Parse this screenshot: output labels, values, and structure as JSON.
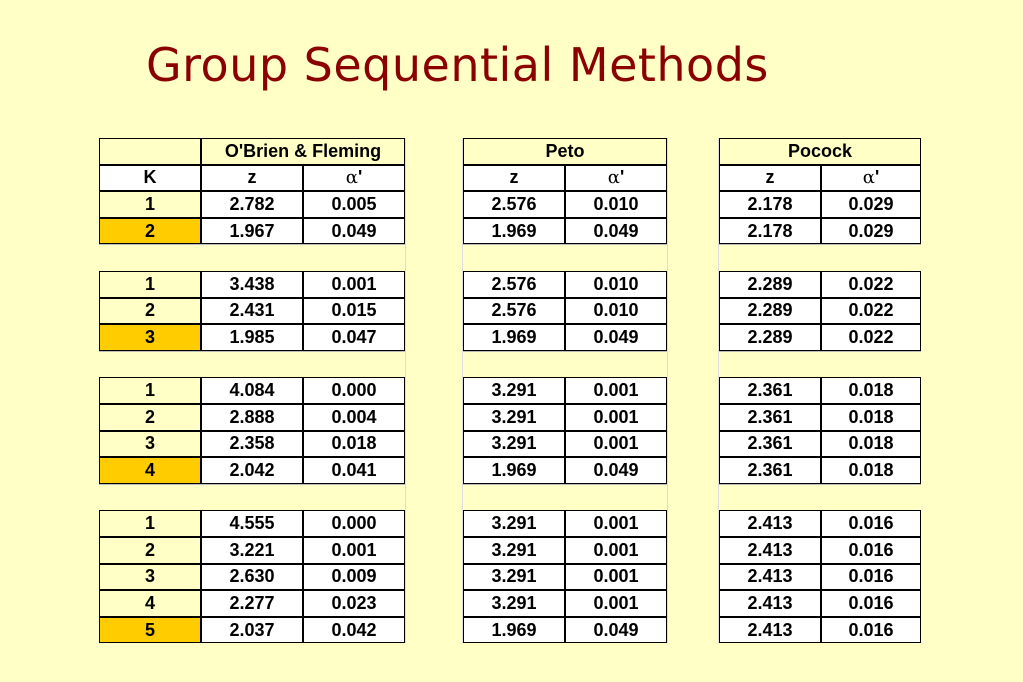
{
  "title": "Group Sequential Methods",
  "table": {
    "header_k": "K",
    "z_label": "z",
    "alpha_symbol": "α",
    "alpha_prime": "'",
    "methods": [
      "O'Brien & Fleming",
      "Peto",
      "Pocock"
    ],
    "groups": [
      {
        "rows": [
          {
            "k": "1",
            "obf_z": "2.782",
            "obf_a": "0.005",
            "peto_z": "2.576",
            "peto_a": "0.010",
            "poc_z": "2.178",
            "poc_a": "0.029"
          },
          {
            "k": "2",
            "obf_z": "1.967",
            "obf_a": "0.049",
            "peto_z": "1.969",
            "peto_a": "0.049",
            "poc_z": "2.178",
            "poc_a": "0.029"
          }
        ]
      },
      {
        "rows": [
          {
            "k": "1",
            "obf_z": "3.438",
            "obf_a": "0.001",
            "peto_z": "2.576",
            "peto_a": "0.010",
            "poc_z": "2.289",
            "poc_a": "0.022"
          },
          {
            "k": "2",
            "obf_z": "2.431",
            "obf_a": "0.015",
            "peto_z": "2.576",
            "peto_a": "0.010",
            "poc_z": "2.289",
            "poc_a": "0.022"
          },
          {
            "k": "3",
            "obf_z": "1.985",
            "obf_a": "0.047",
            "peto_z": "1.969",
            "peto_a": "0.049",
            "poc_z": "2.289",
            "poc_a": "0.022"
          }
        ]
      },
      {
        "rows": [
          {
            "k": "1",
            "obf_z": "4.084",
            "obf_a": "0.000",
            "peto_z": "3.291",
            "peto_a": "0.001",
            "poc_z": "2.361",
            "poc_a": "0.018"
          },
          {
            "k": "2",
            "obf_z": "2.888",
            "obf_a": "0.004",
            "peto_z": "3.291",
            "peto_a": "0.001",
            "poc_z": "2.361",
            "poc_a": "0.018"
          },
          {
            "k": "3",
            "obf_z": "2.358",
            "obf_a": "0.018",
            "peto_z": "3.291",
            "peto_a": "0.001",
            "poc_z": "2.361",
            "poc_a": "0.018"
          },
          {
            "k": "4",
            "obf_z": "2.042",
            "obf_a": "0.041",
            "peto_z": "1.969",
            "peto_a": "0.049",
            "poc_z": "2.361",
            "poc_a": "0.018"
          }
        ]
      },
      {
        "rows": [
          {
            "k": "1",
            "obf_z": "4.555",
            "obf_a": "0.000",
            "peto_z": "3.291",
            "peto_a": "0.001",
            "poc_z": "2.413",
            "poc_a": "0.016"
          },
          {
            "k": "2",
            "obf_z": "3.221",
            "obf_a": "0.001",
            "peto_z": "3.291",
            "peto_a": "0.001",
            "poc_z": "2.413",
            "poc_a": "0.016"
          },
          {
            "k": "3",
            "obf_z": "2.630",
            "obf_a": "0.009",
            "peto_z": "3.291",
            "peto_a": "0.001",
            "poc_z": "2.413",
            "poc_a": "0.016"
          },
          {
            "k": "4",
            "obf_z": "2.277",
            "obf_a": "0.023",
            "peto_z": "3.291",
            "peto_a": "0.001",
            "poc_z": "2.413",
            "poc_a": "0.016"
          },
          {
            "k": "5",
            "obf_z": "2.037",
            "obf_a": "0.042",
            "peto_z": "1.969",
            "peto_a": "0.049",
            "poc_z": "2.413",
            "poc_a": "0.016"
          }
        ]
      }
    ]
  }
}
